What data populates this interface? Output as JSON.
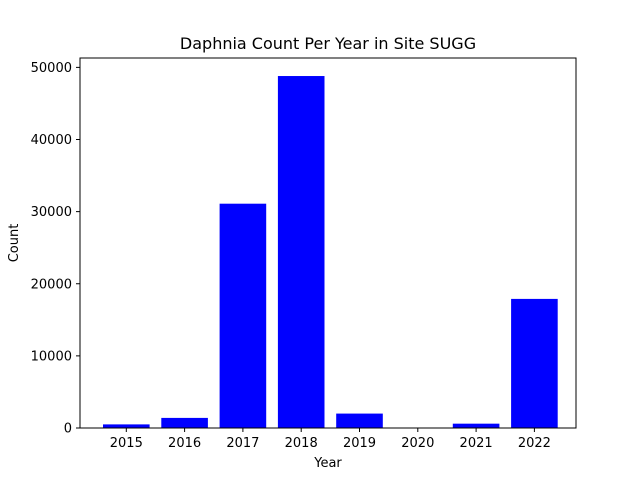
{
  "chart_data": {
    "type": "bar",
    "title": "Daphnia Count Per Year in Site SUGG",
    "xlabel": "Year",
    "ylabel": "Count",
    "categories": [
      "2015",
      "2016",
      "2017",
      "2018",
      "2019",
      "2020",
      "2021",
      "2022"
    ],
    "values": [
      500,
      1400,
      31100,
      48800,
      2000,
      0,
      600,
      17900
    ],
    "ylim": [
      0,
      51300
    ],
    "yticks": [
      0,
      10000,
      20000,
      30000,
      40000,
      50000
    ],
    "grid": false,
    "legend": "none",
    "bar_color": "#0000ff"
  }
}
